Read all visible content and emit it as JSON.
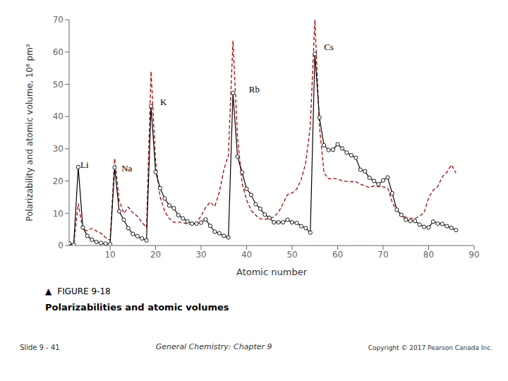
{
  "chart_data": {
    "type": "line",
    "xlabel": "Atomic number",
    "ylabel": "Polarizability and atomic volume, 10⁶ pm³",
    "xlim": [
      1,
      90
    ],
    "ylim": [
      0,
      70
    ],
    "xticks": [
      10,
      20,
      30,
      40,
      50,
      60,
      70,
      80,
      90
    ],
    "yticks": [
      0,
      10,
      20,
      30,
      40,
      50,
      60,
      70
    ],
    "grid": false,
    "caption": [
      "▲",
      "FIGURE 9-18"
    ],
    "subtitle": "Polarizabilities and atomic volumes",
    "footer": [
      "Slide 9 - 41",
      "General Chemistry: Chapter 9",
      "Copyright © 2017 Pearson Canada Inc."
    ],
    "annotations": [
      {
        "text": "Li",
        "x": 3.5,
        "y": 24.0
      },
      {
        "text": "Na",
        "x": 12.5,
        "y": 23.0
      },
      {
        "text": "K",
        "x": 21.0,
        "y": 43.5
      },
      {
        "text": "Rb",
        "x": 40.5,
        "y": 47.5
      },
      {
        "text": "Cs",
        "x": 57.0,
        "y": 60.5
      }
    ],
    "x": [
      1,
      2,
      3,
      4,
      5,
      6,
      7,
      8,
      9,
      10,
      11,
      12,
      13,
      14,
      15,
      16,
      17,
      18,
      19,
      20,
      21,
      22,
      23,
      24,
      25,
      26,
      27,
      28,
      29,
      30,
      31,
      32,
      33,
      34,
      35,
      36,
      37,
      38,
      39,
      40,
      41,
      42,
      43,
      44,
      45,
      46,
      47,
      48,
      49,
      50,
      51,
      52,
      53,
      54,
      55,
      56,
      57,
      58,
      59,
      60,
      61,
      62,
      63,
      64,
      65,
      66,
      67,
      68,
      69,
      70,
      71,
      72,
      73,
      74,
      75,
      76,
      77,
      78,
      79,
      80,
      81,
      82,
      83,
      84,
      85,
      86
    ],
    "series": [
      {
        "color": "#b00000",
        "line_style": "dashed",
        "marker": "none",
        "values": [
          0.5,
          0.3,
          13.0,
          5.0,
          4.6,
          5.3,
          4.5,
          3.8,
          2.5,
          1.6,
          27.0,
          14.0,
          10.0,
          11.9,
          10.1,
          9.1,
          7.2,
          5.6,
          54.0,
          26.0,
          15.0,
          10.6,
          8.4,
          7.2,
          7.3,
          7.1,
          6.7,
          6.6,
          7.1,
          9.2,
          11.8,
          13.5,
          12.1,
          16.5,
          23.5,
          28.0,
          63.5,
          33.7,
          19.4,
          14.1,
          10.9,
          9.4,
          8.3,
          8.2,
          8.3,
          8.9,
          10.3,
          13.0,
          15.8,
          16.3,
          17.5,
          20.5,
          25.7,
          37.0,
          70.0,
          37.0,
          22.6,
          20.7,
          20.8,
          20.6,
          20.1,
          19.9,
          19.8,
          19.8,
          19.0,
          18.5,
          18.0,
          18.5,
          18.3,
          18.2,
          17.9,
          13.4,
          10.9,
          9.5,
          8.8,
          8.5,
          8.4,
          9.1,
          10.2,
          14.8,
          17.2,
          18.3,
          21.3,
          22.7,
          25.0,
          22.5
        ]
      },
      {
        "color": "#000000",
        "line_style": "solid",
        "marker": "circle",
        "values": [
          0.7,
          0.2,
          24.3,
          5.6,
          3.0,
          1.8,
          1.1,
          0.8,
          0.6,
          0.4,
          24.2,
          10.6,
          8.0,
          5.4,
          3.6,
          2.9,
          2.2,
          1.6,
          43.2,
          22.8,
          17.8,
          14.6,
          12.4,
          11.6,
          9.4,
          8.4,
          7.5,
          6.8,
          6.8,
          7.1,
          8.1,
          6.1,
          4.3,
          3.8,
          3.0,
          2.5,
          47.3,
          27.6,
          22.7,
          17.6,
          15.7,
          12.8,
          11.4,
          9.6,
          8.6,
          7.2,
          7.2,
          7.2,
          8.0,
          7.2,
          7.0,
          6.0,
          5.4,
          4.0,
          59.4,
          39.7,
          31.1,
          29.6,
          29.7,
          31.4,
          30.1,
          28.8,
          28.0,
          27.2,
          23.5,
          23.0,
          21.0,
          20.0,
          19.0,
          20.2,
          21.1,
          16.2,
          11.1,
          9.5,
          8.0,
          7.6,
          7.6,
          6.5,
          5.8,
          5.6,
          7.4,
          6.8,
          6.7,
          6.0,
          5.5,
          4.8
        ]
      }
    ]
  }
}
